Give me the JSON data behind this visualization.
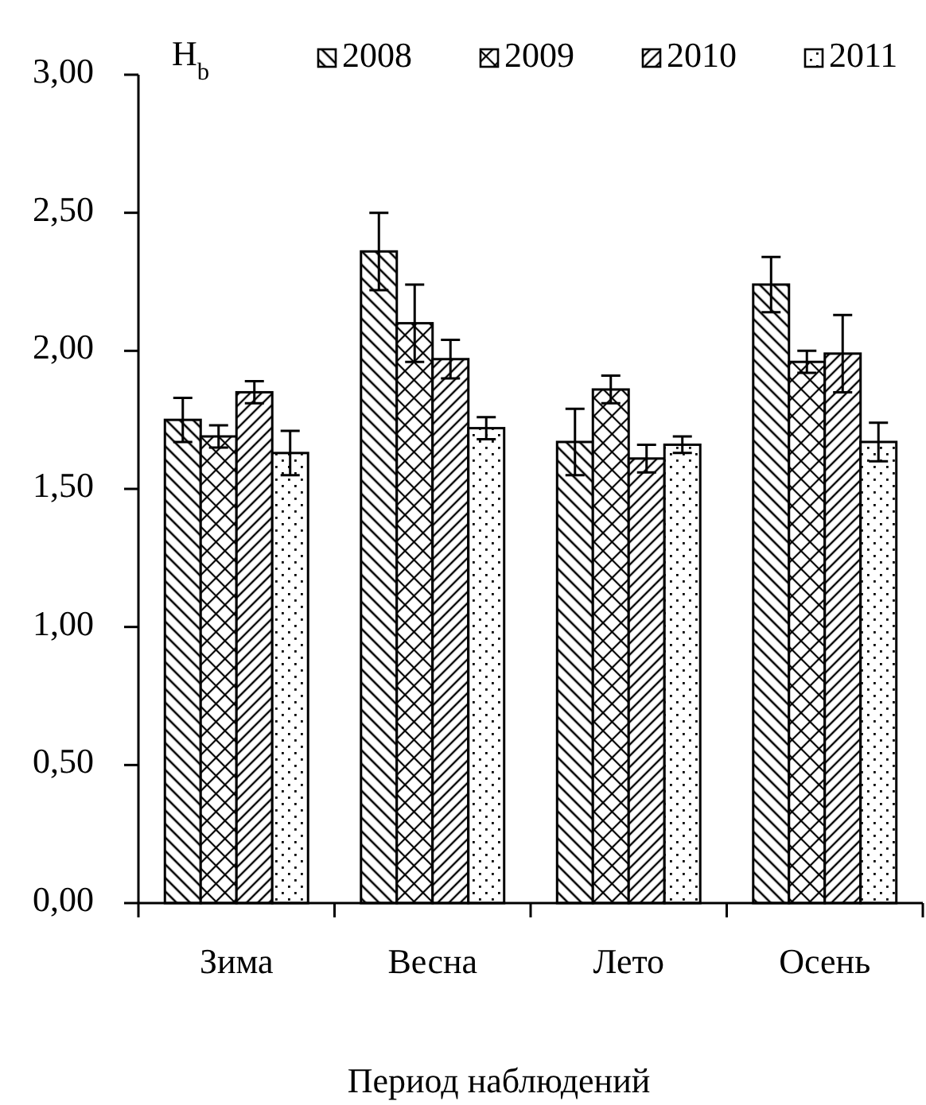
{
  "chart_data": {
    "type": "bar",
    "ylabel": "H$_{b}$",
    "xlabel": "Период наблюдений",
    "categories": [
      "Зима",
      "Весна",
      "Лето",
      "Осень"
    ],
    "series": [
      {
        "name": "2008",
        "color": "#000000",
        "values": [
          1.75,
          2.36,
          1.67,
          2.24
        ],
        "errors": [
          0.08,
          0.14,
          0.12,
          0.1
        ]
      },
      {
        "name": "2009",
        "color": "#000000",
        "values": [
          1.69,
          2.1,
          1.86,
          1.96
        ],
        "errors": [
          0.04,
          0.14,
          0.05,
          0.04
        ]
      },
      {
        "name": "2010",
        "color": "#000000",
        "values": [
          1.85,
          1.97,
          1.61,
          1.99
        ],
        "errors": [
          0.04,
          0.07,
          0.05,
          0.14
        ]
      },
      {
        "name": "2011",
        "color": "#000000",
        "values": [
          1.63,
          1.72,
          1.66,
          1.67
        ],
        "errors": [
          0.08,
          0.04,
          0.03,
          0.07
        ]
      }
    ],
    "ylim": [
      0,
      3
    ],
    "yticks": [
      {
        "value": 0,
        "label": "0,00"
      },
      {
        "value": 0.5,
        "label": "0,50"
      },
      {
        "value": 1,
        "label": "1,00"
      },
      {
        "value": 1.5,
        "label": "1,50"
      },
      {
        "value": 2,
        "label": "2,00"
      },
      {
        "value": 2.5,
        "label": "2,50"
      },
      {
        "value": 3,
        "label": "3,00"
      }
    ],
    "legend": "top"
  }
}
